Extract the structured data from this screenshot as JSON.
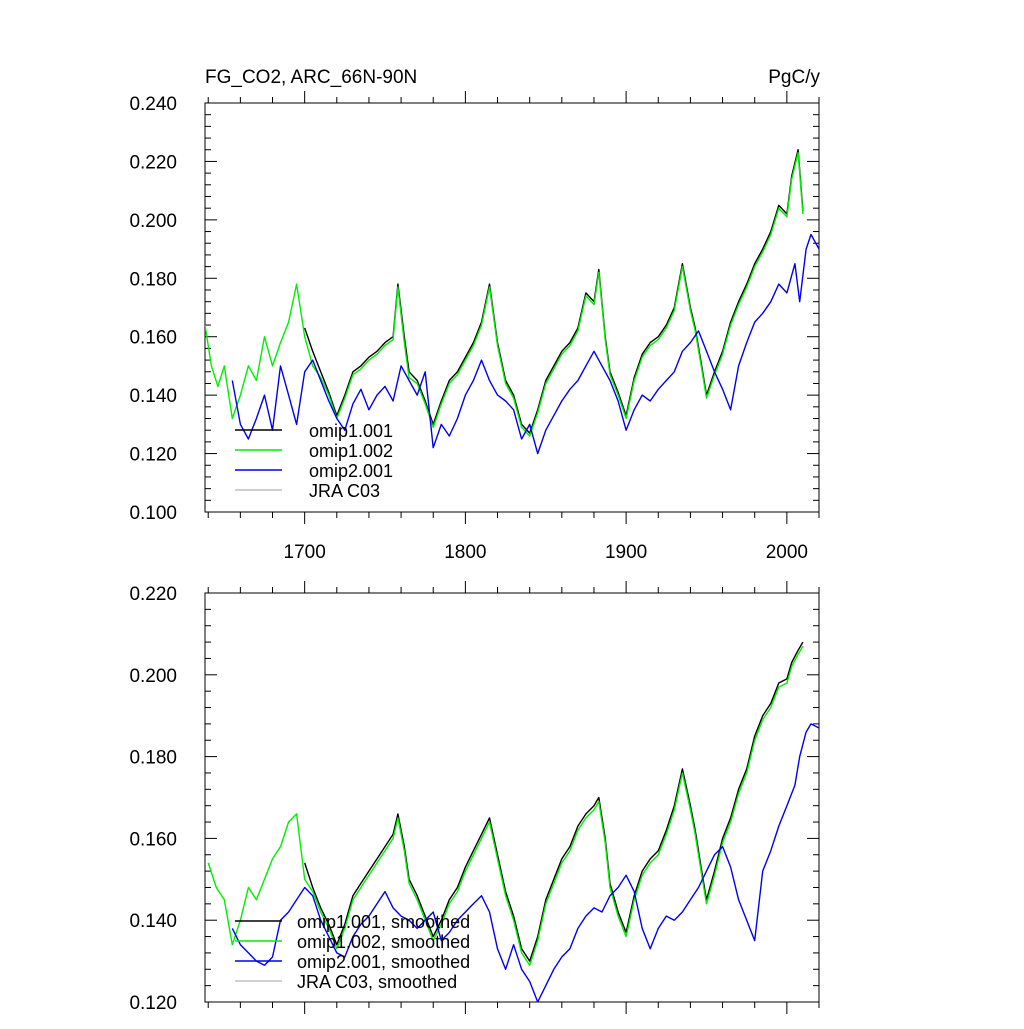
{
  "chart_data": [
    {
      "type": "line",
      "title": "FG_CO2, ARC_66N-90N",
      "units": "PgC/y",
      "xlabel": "",
      "ylabel": "",
      "xlim": [
        1638,
        2020
      ],
      "ylim": [
        0.1,
        0.24
      ],
      "x_ticks": [
        1700,
        1800,
        1900,
        2000
      ],
      "x_tick_labels": [
        "1700",
        "1800",
        "1900",
        "2000"
      ],
      "y_ticks": [
        0.1,
        0.12,
        0.14,
        0.16,
        0.18,
        0.2,
        0.22,
        0.24
      ],
      "y_tick_labels": [
        "0.100",
        "0.120",
        "0.140",
        "0.160",
        "0.180",
        "0.200",
        "0.220",
        "0.240"
      ],
      "grid": false,
      "legend_position": "bottom-left",
      "series": [
        {
          "name": "omip1.001",
          "color": "#000000",
          "x": [
            1700,
            1705,
            1710,
            1715,
            1720,
            1725,
            1730,
            1735,
            1740,
            1745,
            1750,
            1755,
            1758,
            1762,
            1765,
            1770,
            1775,
            1780,
            1785,
            1790,
            1795,
            1800,
            1805,
            1810,
            1815,
            1820,
            1825,
            1830,
            1835,
            1840,
            1845,
            1850,
            1855,
            1860,
            1865,
            1870,
            1875,
            1880,
            1883,
            1887,
            1890,
            1895,
            1900,
            1905,
            1910,
            1915,
            1920,
            1925,
            1930,
            1935,
            1940,
            1943,
            1947,
            1950,
            1955,
            1960,
            1965,
            1970,
            1975,
            1980,
            1985,
            1990,
            1995,
            2000,
            2003,
            2007,
            2010
          ],
          "values": [
            0.163,
            0.155,
            0.148,
            0.141,
            0.133,
            0.14,
            0.148,
            0.15,
            0.153,
            0.155,
            0.158,
            0.16,
            0.178,
            0.16,
            0.148,
            0.145,
            0.138,
            0.13,
            0.138,
            0.145,
            0.148,
            0.153,
            0.158,
            0.165,
            0.178,
            0.158,
            0.145,
            0.14,
            0.13,
            0.127,
            0.135,
            0.145,
            0.15,
            0.155,
            0.158,
            0.163,
            0.175,
            0.172,
            0.183,
            0.16,
            0.148,
            0.141,
            0.133,
            0.146,
            0.154,
            0.158,
            0.16,
            0.164,
            0.17,
            0.185,
            0.17,
            0.163,
            0.15,
            0.14,
            0.148,
            0.155,
            0.165,
            0.172,
            0.178,
            0.185,
            0.19,
            0.196,
            0.205,
            0.202,
            0.215,
            0.224,
            0.203
          ]
        },
        {
          "name": "omip1.002",
          "color": "#00ee00",
          "x": [
            1638,
            1642,
            1646,
            1650,
            1655,
            1660,
            1665,
            1670,
            1675,
            1680,
            1685,
            1690,
            1695,
            1700,
            1705,
            1710,
            1715,
            1720,
            1725,
            1730,
            1735,
            1740,
            1745,
            1750,
            1755,
            1758,
            1762,
            1765,
            1770,
            1775,
            1780,
            1785,
            1790,
            1795,
            1800,
            1805,
            1810,
            1815,
            1820,
            1825,
            1830,
            1835,
            1840,
            1845,
            1850,
            1855,
            1860,
            1865,
            1870,
            1875,
            1880,
            1883,
            1887,
            1890,
            1895,
            1900,
            1905,
            1910,
            1915,
            1920,
            1925,
            1930,
            1935,
            1940,
            1943,
            1947,
            1950,
            1955,
            1960,
            1965,
            1970,
            1975,
            1980,
            1985,
            1990,
            1995,
            2000,
            2003,
            2007,
            2010
          ],
          "values": [
            0.164,
            0.15,
            0.143,
            0.15,
            0.132,
            0.14,
            0.15,
            0.145,
            0.16,
            0.15,
            0.158,
            0.165,
            0.178,
            0.16,
            0.15,
            0.146,
            0.14,
            0.132,
            0.139,
            0.147,
            0.149,
            0.152,
            0.154,
            0.157,
            0.159,
            0.177,
            0.158,
            0.146,
            0.144,
            0.137,
            0.129,
            0.137,
            0.144,
            0.147,
            0.152,
            0.157,
            0.164,
            0.177,
            0.157,
            0.144,
            0.139,
            0.129,
            0.126,
            0.134,
            0.144,
            0.149,
            0.154,
            0.157,
            0.162,
            0.174,
            0.171,
            0.182,
            0.159,
            0.147,
            0.14,
            0.132,
            0.145,
            0.153,
            0.157,
            0.159,
            0.163,
            0.169,
            0.184,
            0.169,
            0.162,
            0.149,
            0.139,
            0.147,
            0.154,
            0.164,
            0.171,
            0.177,
            0.184,
            0.189,
            0.195,
            0.204,
            0.201,
            0.214,
            0.223,
            0.202
          ]
        },
        {
          "name": "omip2.001",
          "color": "#0000ee",
          "x": [
            1655,
            1660,
            1665,
            1670,
            1675,
            1680,
            1685,
            1690,
            1695,
            1700,
            1705,
            1710,
            1715,
            1720,
            1725,
            1730,
            1735,
            1740,
            1745,
            1750,
            1755,
            1760,
            1765,
            1770,
            1775,
            1780,
            1785,
            1790,
            1795,
            1800,
            1805,
            1810,
            1815,
            1820,
            1825,
            1830,
            1835,
            1840,
            1845,
            1850,
            1855,
            1860,
            1865,
            1870,
            1875,
            1880,
            1885,
            1890,
            1895,
            1900,
            1905,
            1910,
            1915,
            1920,
            1925,
            1930,
            1935,
            1940,
            1945,
            1950,
            1955,
            1960,
            1965,
            1970,
            1975,
            1980,
            1985,
            1990,
            1995,
            2000,
            2005,
            2008,
            2012,
            2015,
            2020
          ],
          "values": [
            0.145,
            0.13,
            0.125,
            0.132,
            0.14,
            0.128,
            0.15,
            0.14,
            0.13,
            0.148,
            0.152,
            0.145,
            0.138,
            0.132,
            0.128,
            0.137,
            0.142,
            0.135,
            0.14,
            0.143,
            0.138,
            0.15,
            0.145,
            0.14,
            0.148,
            0.122,
            0.13,
            0.126,
            0.132,
            0.14,
            0.145,
            0.152,
            0.145,
            0.14,
            0.138,
            0.135,
            0.125,
            0.13,
            0.12,
            0.128,
            0.133,
            0.138,
            0.142,
            0.145,
            0.15,
            0.155,
            0.15,
            0.145,
            0.138,
            0.128,
            0.135,
            0.14,
            0.138,
            0.142,
            0.145,
            0.148,
            0.155,
            0.158,
            0.162,
            0.155,
            0.148,
            0.142,
            0.135,
            0.15,
            0.158,
            0.165,
            0.168,
            0.172,
            0.178,
            0.175,
            0.185,
            0.172,
            0.19,
            0.195,
            0.19
          ]
        },
        {
          "name": "JRA C03",
          "color": "#c0c0c0",
          "x": [],
          "values": []
        }
      ]
    },
    {
      "type": "line",
      "title": "",
      "xlabel": "",
      "ylabel": "",
      "xlim": [
        1638,
        2020
      ],
      "ylim": [
        0.12,
        0.22
      ],
      "x_ticks": [
        1700,
        1800,
        1900,
        2000
      ],
      "y_ticks": [
        0.12,
        0.14,
        0.16,
        0.18,
        0.2,
        0.22
      ],
      "y_tick_labels": [
        "0.120",
        "0.140",
        "0.160",
        "0.180",
        "0.200",
        "0.220"
      ],
      "grid": false,
      "legend_position": "bottom-left",
      "series": [
        {
          "name": "omip1.001, smoothed",
          "color": "#000000",
          "x": [
            1700,
            1705,
            1710,
            1715,
            1720,
            1725,
            1730,
            1735,
            1740,
            1745,
            1750,
            1755,
            1758,
            1762,
            1765,
            1770,
            1775,
            1780,
            1785,
            1790,
            1795,
            1800,
            1805,
            1810,
            1815,
            1820,
            1825,
            1830,
            1835,
            1840,
            1845,
            1850,
            1855,
            1860,
            1865,
            1870,
            1875,
            1880,
            1883,
            1887,
            1890,
            1895,
            1900,
            1905,
            1910,
            1915,
            1920,
            1925,
            1930,
            1935,
            1940,
            1943,
            1947,
            1950,
            1955,
            1960,
            1965,
            1970,
            1975,
            1980,
            1985,
            1990,
            1995,
            2000,
            2003,
            2007,
            2010
          ],
          "values": [
            0.154,
            0.148,
            0.143,
            0.139,
            0.134,
            0.139,
            0.146,
            0.149,
            0.152,
            0.155,
            0.158,
            0.161,
            0.166,
            0.158,
            0.15,
            0.146,
            0.141,
            0.136,
            0.14,
            0.145,
            0.148,
            0.153,
            0.157,
            0.161,
            0.165,
            0.156,
            0.147,
            0.141,
            0.133,
            0.13,
            0.136,
            0.145,
            0.15,
            0.155,
            0.158,
            0.163,
            0.166,
            0.168,
            0.17,
            0.16,
            0.149,
            0.142,
            0.137,
            0.146,
            0.152,
            0.155,
            0.157,
            0.162,
            0.168,
            0.177,
            0.168,
            0.162,
            0.152,
            0.145,
            0.152,
            0.16,
            0.165,
            0.172,
            0.177,
            0.185,
            0.19,
            0.193,
            0.198,
            0.199,
            0.203,
            0.206,
            0.208
          ]
        },
        {
          "name": "omip1.002, smoothed",
          "color": "#00ee00",
          "x": [
            1640,
            1645,
            1650,
            1655,
            1660,
            1665,
            1670,
            1675,
            1680,
            1685,
            1690,
            1695,
            1700,
            1705,
            1710,
            1715,
            1720,
            1725,
            1730,
            1735,
            1740,
            1745,
            1750,
            1755,
            1758,
            1762,
            1765,
            1770,
            1775,
            1780,
            1785,
            1790,
            1795,
            1800,
            1805,
            1810,
            1815,
            1820,
            1825,
            1830,
            1835,
            1840,
            1845,
            1850,
            1855,
            1860,
            1865,
            1870,
            1875,
            1880,
            1883,
            1887,
            1890,
            1895,
            1900,
            1905,
            1910,
            1915,
            1920,
            1925,
            1930,
            1935,
            1940,
            1943,
            1947,
            1950,
            1955,
            1960,
            1965,
            1970,
            1975,
            1980,
            1985,
            1990,
            1995,
            2000,
            2003,
            2007,
            2010
          ],
          "values": [
            0.154,
            0.148,
            0.145,
            0.134,
            0.14,
            0.148,
            0.145,
            0.15,
            0.155,
            0.158,
            0.164,
            0.166,
            0.15,
            0.147,
            0.142,
            0.138,
            0.133,
            0.138,
            0.145,
            0.148,
            0.151,
            0.154,
            0.157,
            0.16,
            0.165,
            0.157,
            0.149,
            0.145,
            0.14,
            0.135,
            0.139,
            0.144,
            0.147,
            0.152,
            0.156,
            0.16,
            0.164,
            0.155,
            0.146,
            0.14,
            0.132,
            0.129,
            0.135,
            0.144,
            0.149,
            0.154,
            0.157,
            0.162,
            0.165,
            0.167,
            0.169,
            0.159,
            0.148,
            0.141,
            0.136,
            0.145,
            0.151,
            0.154,
            0.156,
            0.161,
            0.167,
            0.176,
            0.167,
            0.161,
            0.151,
            0.144,
            0.151,
            0.159,
            0.164,
            0.171,
            0.176,
            0.184,
            0.189,
            0.192,
            0.197,
            0.198,
            0.202,
            0.205,
            0.207
          ]
        },
        {
          "name": "omip2.001, smoothed",
          "color": "#0000ee",
          "x": [
            1655,
            1660,
            1665,
            1670,
            1675,
            1680,
            1685,
            1690,
            1695,
            1700,
            1705,
            1710,
            1715,
            1720,
            1725,
            1730,
            1735,
            1740,
            1745,
            1750,
            1755,
            1760,
            1765,
            1770,
            1775,
            1780,
            1785,
            1790,
            1795,
            1800,
            1805,
            1810,
            1815,
            1820,
            1825,
            1830,
            1835,
            1840,
            1845,
            1850,
            1855,
            1860,
            1865,
            1870,
            1875,
            1880,
            1885,
            1890,
            1895,
            1900,
            1905,
            1910,
            1915,
            1920,
            1925,
            1930,
            1935,
            1940,
            1945,
            1950,
            1955,
            1960,
            1965,
            1970,
            1975,
            1980,
            1985,
            1990,
            1995,
            2000,
            2005,
            2008,
            2012,
            2015,
            2020
          ],
          "values": [
            0.138,
            0.134,
            0.132,
            0.13,
            0.129,
            0.131,
            0.14,
            0.142,
            0.145,
            0.148,
            0.146,
            0.14,
            0.136,
            0.132,
            0.131,
            0.136,
            0.139,
            0.141,
            0.144,
            0.147,
            0.143,
            0.141,
            0.14,
            0.138,
            0.14,
            0.142,
            0.135,
            0.137,
            0.14,
            0.142,
            0.144,
            0.146,
            0.142,
            0.133,
            0.128,
            0.134,
            0.128,
            0.125,
            0.12,
            0.124,
            0.128,
            0.131,
            0.133,
            0.138,
            0.141,
            0.143,
            0.142,
            0.146,
            0.148,
            0.151,
            0.147,
            0.138,
            0.133,
            0.138,
            0.141,
            0.14,
            0.142,
            0.145,
            0.148,
            0.152,
            0.156,
            0.158,
            0.153,
            0.145,
            0.14,
            0.135,
            0.152,
            0.157,
            0.163,
            0.168,
            0.173,
            0.18,
            0.186,
            0.188,
            0.187
          ]
        },
        {
          "name": "JRA C03, smoothed",
          "color": "#c0c0c0",
          "x": [],
          "values": []
        }
      ]
    }
  ]
}
